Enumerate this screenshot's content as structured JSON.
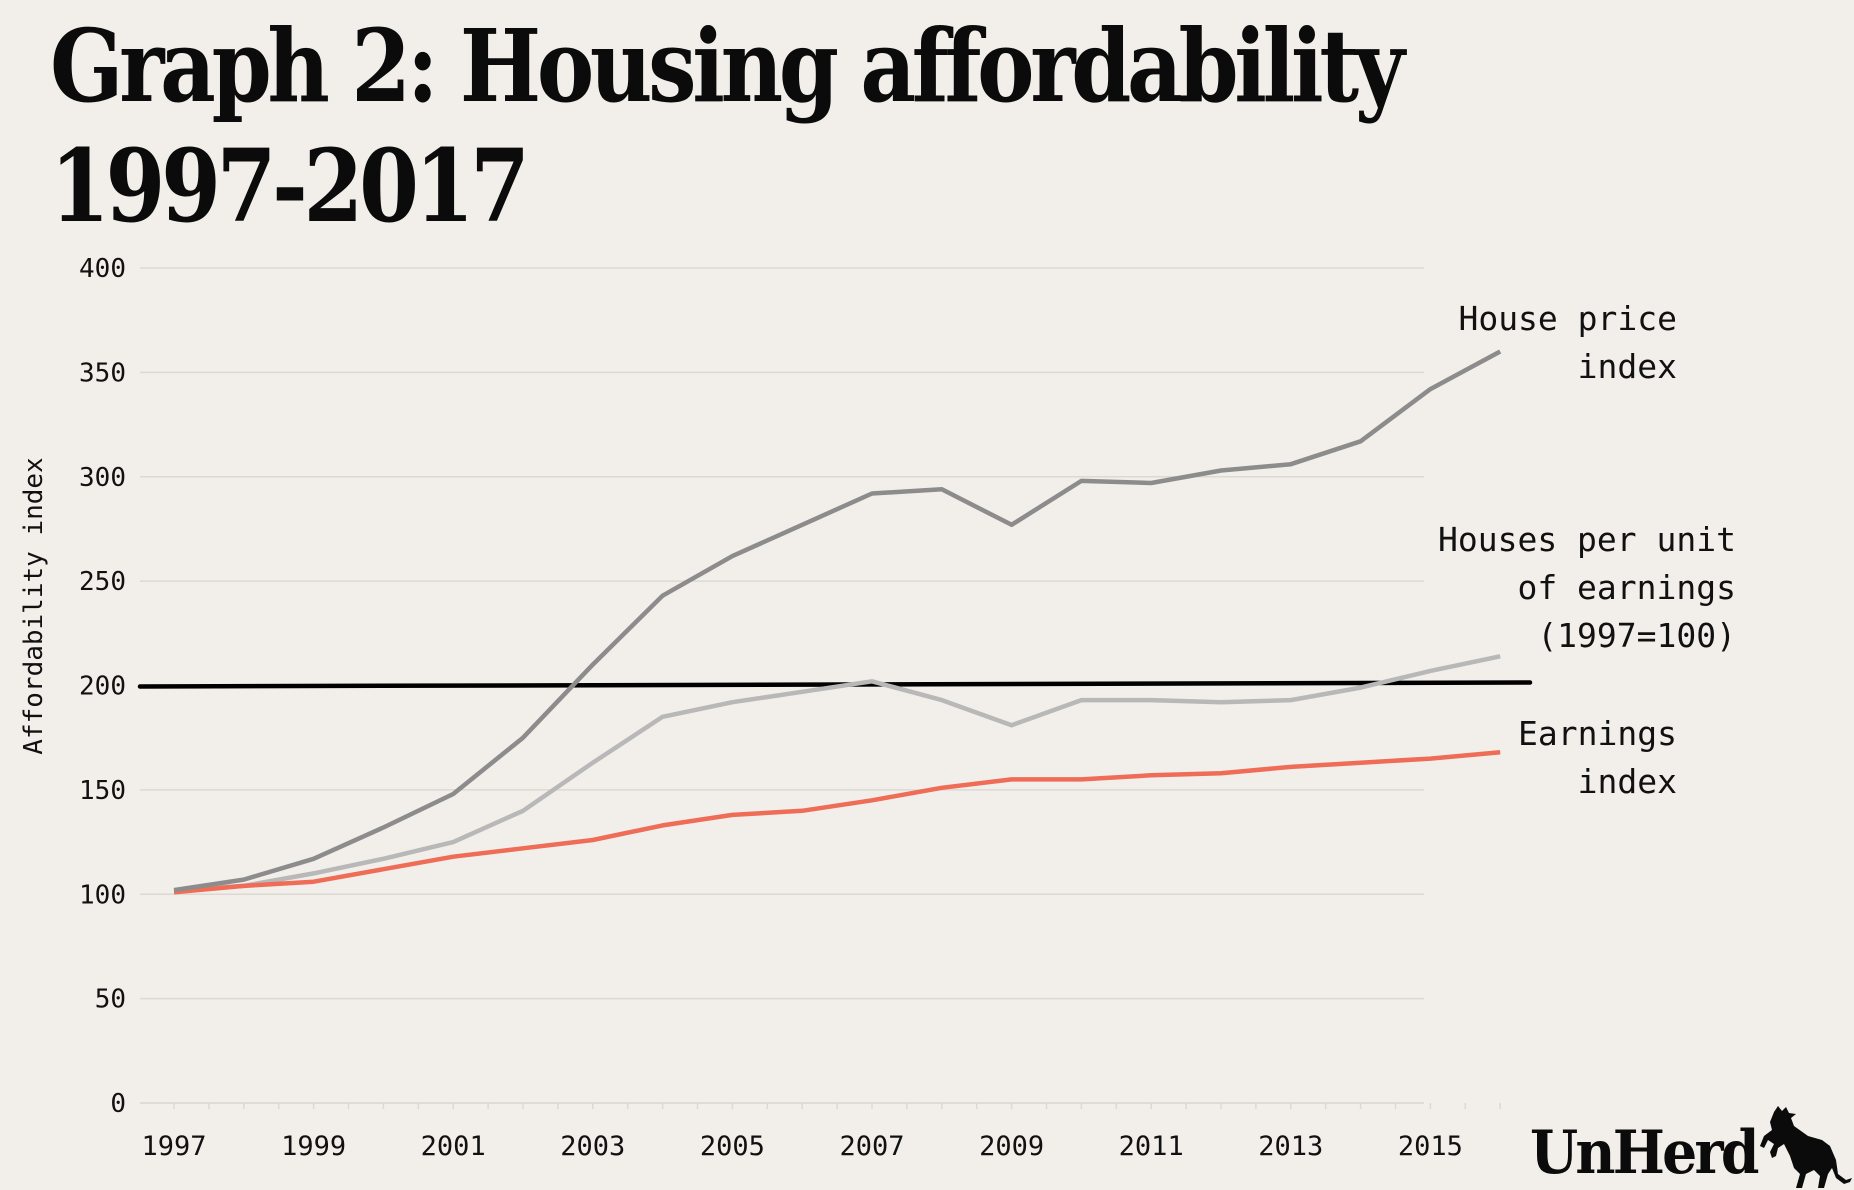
{
  "title_line1": "Graph 2: Housing affordability",
  "title_line2": "1997-2017",
  "brand": {
    "name": "UnHerd",
    "logo_icon": "cow-icon"
  },
  "colors": {
    "house_price": "#8c8c8c",
    "houses_per_earnings": "#b8b8b8",
    "earnings": "#ef6c57",
    "reference": "#000000",
    "background": "#f2efea"
  },
  "chart_data": {
    "type": "line",
    "title": "Graph 2: Housing affordability 1997-2017",
    "xlabel": "",
    "ylabel": "Affordability index",
    "ylim": [
      0,
      400
    ],
    "xlim": [
      1997,
      2016
    ],
    "yticks": [
      0,
      50,
      100,
      150,
      200,
      250,
      300,
      350,
      400
    ],
    "xtick_labels": [
      "1997",
      "1999",
      "2001",
      "2003",
      "2005",
      "2007",
      "2009",
      "2011",
      "2013",
      "2015"
    ],
    "grid": true,
    "legend": "inline-right",
    "x": [
      1997,
      1998,
      1999,
      2000,
      2001,
      2002,
      2003,
      2004,
      2005,
      2006,
      2007,
      2008,
      2009,
      2010,
      2011,
      2012,
      2013,
      2014,
      2015,
      2016
    ],
    "series": [
      {
        "name": "House price index",
        "label_lines": [
          "House price",
          "index"
        ],
        "values": [
          102,
          107,
          117,
          132,
          148,
          175,
          210,
          243,
          262,
          277,
          292,
          294,
          277,
          298,
          297,
          303,
          306,
          317,
          342,
          360
        ]
      },
      {
        "name": "Houses per unit of earnings (1997=100)",
        "label_lines": [
          "Houses per unit",
          "of earnings",
          "(1997=100)"
        ],
        "values": [
          102,
          104,
          110,
          117,
          125,
          140,
          163,
          185,
          192,
          197,
          202,
          193,
          181,
          193,
          193,
          192,
          193,
          199,
          207,
          214
        ]
      },
      {
        "name": "Earnings index",
        "label_lines": [
          "Earnings",
          "index"
        ],
        "values": [
          101,
          104,
          106,
          112,
          118,
          122,
          126,
          133,
          138,
          140,
          145,
          151,
          155,
          155,
          157,
          158,
          161,
          163,
          165,
          168
        ]
      }
    ],
    "reference_line": {
      "value": 200,
      "label": ""
    }
  }
}
